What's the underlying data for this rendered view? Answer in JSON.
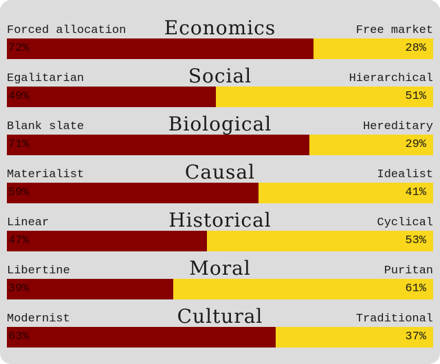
{
  "colors": {
    "left_fill": "#870000",
    "right_fill": "#f9d71c",
    "background": "#dcdcdc"
  },
  "axes": [
    {
      "title": "Economics",
      "left_label": "Forced allocation",
      "right_label": "Free market",
      "left_pct": 72,
      "left_text": "72%",
      "right_text": "28%"
    },
    {
      "title": "Social",
      "left_label": "Egalitarian",
      "right_label": "Hierarchical",
      "left_pct": 49,
      "left_text": "49%",
      "right_text": "51%"
    },
    {
      "title": "Biological",
      "left_label": "Blank slate",
      "right_label": "Hereditary",
      "left_pct": 71,
      "left_text": "71%",
      "right_text": "29%"
    },
    {
      "title": "Causal",
      "left_label": "Materialist",
      "right_label": "Idealist",
      "left_pct": 59,
      "left_text": "59%",
      "right_text": "41%"
    },
    {
      "title": "Historical",
      "left_label": "Linear",
      "right_label": "Cyclical",
      "left_pct": 47,
      "left_text": "47%",
      "right_text": "53%"
    },
    {
      "title": "Moral",
      "left_label": "Libertine",
      "right_label": "Puritan",
      "left_pct": 39,
      "left_text": "39%",
      "right_text": "61%"
    },
    {
      "title": "Cultural",
      "left_label": "Modernist",
      "right_label": "Traditional",
      "left_pct": 63,
      "left_text": "63%",
      "right_text": "37%"
    }
  ]
}
